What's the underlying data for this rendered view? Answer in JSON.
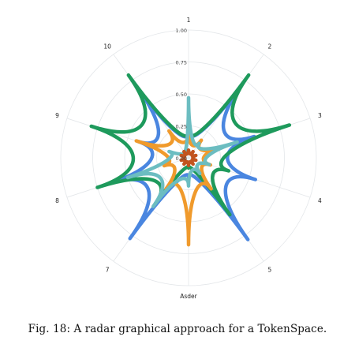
{
  "chart_data": {
    "type": "radar",
    "axes": [
      "1",
      "2",
      "3",
      "4",
      "5",
      "Asder",
      "7",
      "8",
      "9",
      "10"
    ],
    "rlim": [
      0,
      1
    ],
    "radial_ticks": [
      "0.00",
      "0.25",
      "0.50",
      "0.75",
      "1.00"
    ],
    "grid": true,
    "series": [
      {
        "color": "#4a86e0",
        "values": [
          0.2,
          0.72,
          0.54,
          0.55,
          0.79,
          0.15,
          0.78,
          0.65,
          0.42,
          0.68
        ]
      },
      {
        "color": "#1e9a5c",
        "values": [
          0.2,
          0.8,
          0.83,
          0.33,
          0.55,
          0.08,
          0.44,
          0.75,
          0.8,
          0.8
        ]
      },
      {
        "color": "#f09a2c",
        "values": [
          0.2,
          0.17,
          0.25,
          0.18,
          0.3,
          0.68,
          0.3,
          0.2,
          0.43,
          0.26
        ]
      },
      {
        "color": "#6cbdc1",
        "values": [
          0.47,
          0.14,
          0.4,
          0.17,
          0.15,
          0.22,
          0.47,
          0.5,
          0.16,
          0.06
        ]
      },
      {
        "color": "#c2541f",
        "values": [
          0.06,
          0.06,
          0.06,
          0.06,
          0.06,
          0.06,
          0.06,
          0.06,
          0.06,
          0.06
        ]
      }
    ]
  },
  "caption": "Fig. 18: A radar graphical approach for a TokenSpace."
}
